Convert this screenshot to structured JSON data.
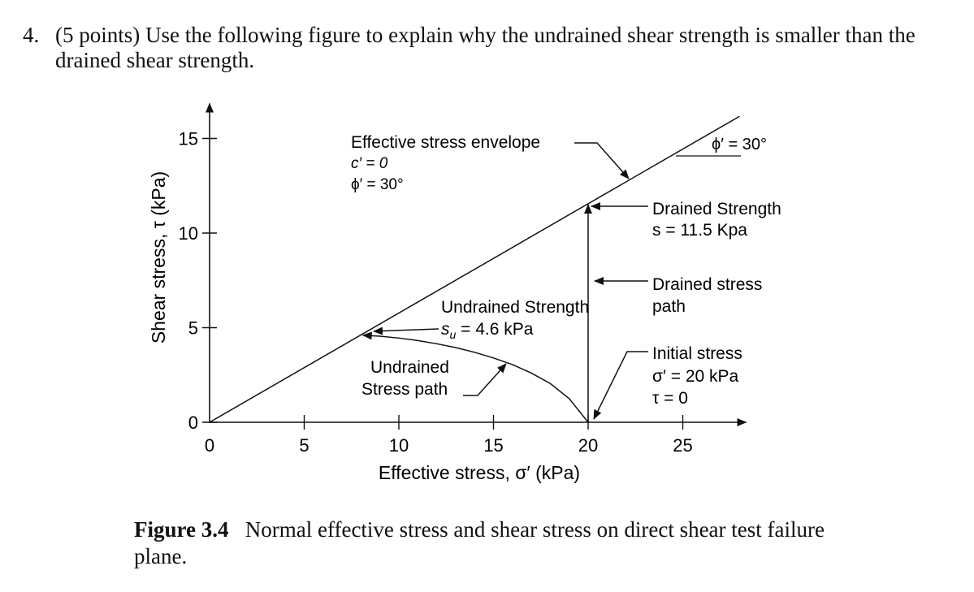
{
  "question": {
    "number": "4.",
    "text": "(5 points) Use the following figure to explain why the undrained shear strength is smaller than the drained shear strength."
  },
  "chart_data": {
    "type": "line",
    "xlabel": "Effective stress, σ′ (kPa)",
    "ylabel": "Shear stress, τ (kPa)",
    "xlim": [
      0,
      28
    ],
    "ylim": [
      0,
      16.5
    ],
    "x_ticks": [
      0,
      5,
      10,
      15,
      20,
      25
    ],
    "x_tick_labels": [
      "0",
      "5",
      "10",
      "15",
      "20",
      "25"
    ],
    "y_ticks": [
      0,
      5,
      10,
      15
    ],
    "y_tick_labels": [
      "0",
      "5",
      "10",
      "15"
    ],
    "series": [
      {
        "name": "Effective stress envelope",
        "x": [
          0,
          28
        ],
        "y": [
          0,
          16.17
        ]
      },
      {
        "name": "Undrained Stress path",
        "x": [
          20,
          19,
          18,
          17,
          16,
          15,
          14,
          13,
          12,
          11,
          10,
          9,
          8.1
        ],
        "y": [
          0,
          1.25,
          2.05,
          2.6,
          3.05,
          3.4,
          3.7,
          3.95,
          4.15,
          4.32,
          4.45,
          4.55,
          4.6
        ]
      },
      {
        "name": "Drained stress path",
        "x": [
          20,
          20
        ],
        "y": [
          0,
          11.5
        ]
      }
    ],
    "annotations": {
      "envelope": {
        "title": "Effective stress envelope",
        "line2": "c′ = 0",
        "line3": "ϕ′ = 30°"
      },
      "angle_label": "ϕ′ = 30°",
      "drained_strength": {
        "line1": "Drained Strength",
        "line2": "s = 11.5 Kpa",
        "value": 11.5
      },
      "drained_path": {
        "line1": "Drained stress",
        "line2": "path"
      },
      "undrained_strength": {
        "line1": "Undrained Strength",
        "symbol": "s",
        "subscript": "u",
        "rest": " = 4.6 kPa",
        "value": 4.6
      },
      "undrained_path": {
        "line1": "Undrained",
        "line2": "Stress path"
      },
      "initial_stress": {
        "line1": "Initial stress",
        "line2": "σ′ = 20 kPa",
        "line3": "τ = 0",
        "sigma": 20,
        "tau": 0
      }
    }
  },
  "caption": {
    "label": "Figure 3.4",
    "text": "Normal effective stress and shear stress on direct shear test failure plane."
  }
}
